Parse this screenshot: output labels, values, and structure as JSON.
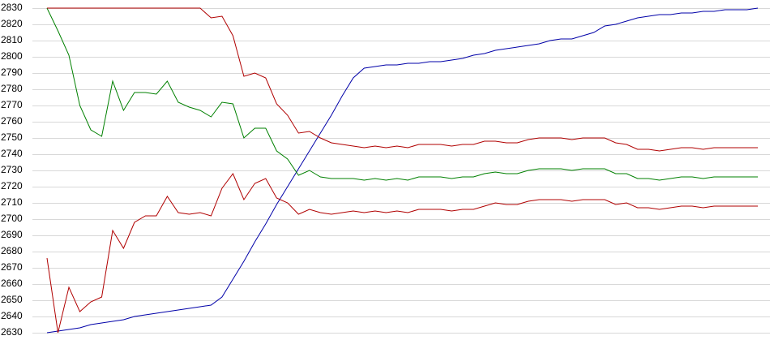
{
  "chart_data": {
    "type": "line",
    "ylim": [
      2630,
      2830
    ],
    "yticks": [
      2630,
      2640,
      2650,
      2660,
      2670,
      2680,
      2690,
      2700,
      2710,
      2720,
      2730,
      2740,
      2750,
      2760,
      2770,
      2780,
      2790,
      2800,
      2810,
      2820,
      2830
    ],
    "grid": true,
    "series": [
      {
        "color": "#0000a8",
        "values": [
          2630,
          2631,
          2632,
          2633,
          2635,
          2636,
          2637,
          2638,
          2640,
          2641,
          2642,
          2643,
          2644,
          2645,
          2646,
          2647,
          2652,
          2663,
          2674,
          2686,
          2697,
          2709,
          2720,
          2731,
          2742,
          2753,
          2764,
          2776,
          2787,
          2793,
          2794,
          2795,
          2795,
          2796,
          2796,
          2797,
          2797,
          2798,
          2799,
          2801,
          2802,
          2804,
          2805,
          2806,
          2807,
          2808,
          2810,
          2811,
          2811,
          2813,
          2815,
          2819,
          2820,
          2822,
          2824,
          2825,
          2826,
          2826,
          2827,
          2827,
          2828,
          2828,
          2829,
          2829,
          2829,
          2830
        ]
      },
      {
        "color": "#008000",
        "values": [
          2830,
          2816,
          2801,
          2770,
          2755,
          2751,
          2785,
          2767,
          2778,
          2778,
          2777,
          2785,
          2772,
          2769,
          2767,
          2763,
          2772,
          2771,
          2750,
          2756,
          2756,
          2742,
          2737,
          2727,
          2730,
          2726,
          2725,
          2725,
          2725,
          2724,
          2725,
          2724,
          2725,
          2724,
          2726,
          2726,
          2726,
          2725,
          2726,
          2726,
          2728,
          2729,
          2728,
          2728,
          2730,
          2731,
          2731,
          2731,
          2730,
          2731,
          2731,
          2731,
          2728,
          2728,
          2725,
          2725,
          2724,
          2725,
          2726,
          2726,
          2725,
          2726,
          2726,
          2726,
          2726,
          2726
        ]
      },
      {
        "color": "#b00000",
        "values": [
          2830,
          2830,
          2830,
          2830,
          2830,
          2830,
          2830,
          2830,
          2830,
          2830,
          2830,
          2830,
          2830,
          2830,
          2830,
          2824,
          2825,
          2813,
          2788,
          2790,
          2787,
          2771,
          2764,
          2753,
          2754,
          2750,
          2747,
          2746,
          2745,
          2744,
          2745,
          2744,
          2745,
          2744,
          2746,
          2746,
          2746,
          2745,
          2746,
          2746,
          2748,
          2748,
          2747,
          2747,
          2749,
          2750,
          2750,
          2750,
          2749,
          2750,
          2750,
          2750,
          2747,
          2746,
          2743,
          2743,
          2742,
          2743,
          2744,
          2744,
          2743,
          2744,
          2744,
          2744,
          2744,
          2744
        ]
      },
      {
        "color": "#b00000",
        "values": [
          2676,
          2630,
          2658,
          2643,
          2649,
          2652,
          2693,
          2682,
          2698,
          2702,
          2702,
          2714,
          2704,
          2703,
          2704,
          2702,
          2719,
          2728,
          2712,
          2722,
          2725,
          2713,
          2710,
          2703,
          2706,
          2704,
          2703,
          2704,
          2705,
          2704,
          2705,
          2704,
          2705,
          2704,
          2706,
          2706,
          2706,
          2705,
          2706,
          2706,
          2708,
          2710,
          2709,
          2709,
          2711,
          2712,
          2712,
          2712,
          2711,
          2712,
          2712,
          2712,
          2709,
          2710,
          2707,
          2707,
          2706,
          2707,
          2708,
          2708,
          2707,
          2708,
          2708,
          2708,
          2708,
          2708
        ]
      }
    ]
  }
}
